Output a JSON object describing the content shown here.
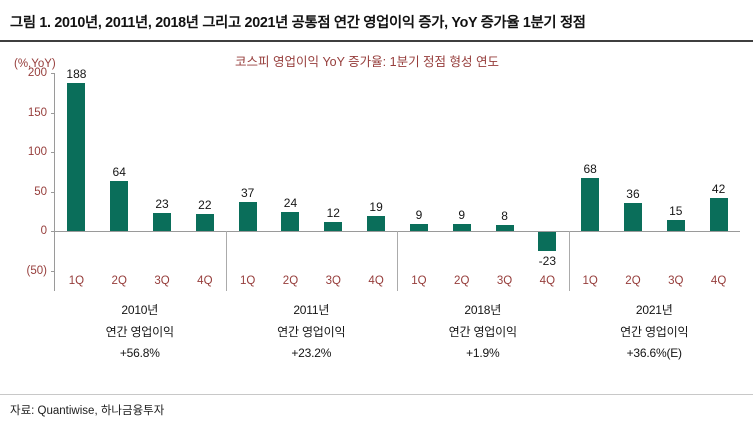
{
  "title": "그림 1. 2010년, 2011년, 2018년 그리고 2021년 공통점 연간 영업이익 증가, YoY 증가율 1분기 정점",
  "source": "자료: Quantiwise, 하나금융투자",
  "chart_data": {
    "type": "bar",
    "title": "코스피 영업이익 YoY 증가율: 1분기 정점 형성 연도",
    "unit_label": "(%,YoY)",
    "ylim": [
      -50,
      200
    ],
    "yticks": [
      200,
      150,
      100,
      50,
      0,
      -50
    ],
    "ytick_labels": [
      "200",
      "150",
      "100",
      "50",
      "0",
      "(50)"
    ],
    "categories": [
      "1Q",
      "2Q",
      "3Q",
      "4Q"
    ],
    "groups": [
      {
        "label_lines": [
          "2010년",
          "연간 영업이익",
          "+56.8%"
        ],
        "values": [
          188,
          64,
          23,
          22
        ]
      },
      {
        "label_lines": [
          "2011년",
          "연간 영업이익",
          "+23.2%"
        ],
        "values": [
          37,
          24,
          12,
          19
        ]
      },
      {
        "label_lines": [
          "2018년",
          "연간 영업이익",
          "+1.9%"
        ],
        "values": [
          9,
          9,
          8,
          -23
        ]
      },
      {
        "label_lines": [
          "2021년",
          "연간 영업이익",
          "+36.6%(E)"
        ],
        "values": [
          68,
          36,
          15,
          42
        ]
      }
    ],
    "bar_color": "#0a6e5a",
    "axis_color": "#963d3b",
    "grid": "off",
    "legend": "none"
  }
}
